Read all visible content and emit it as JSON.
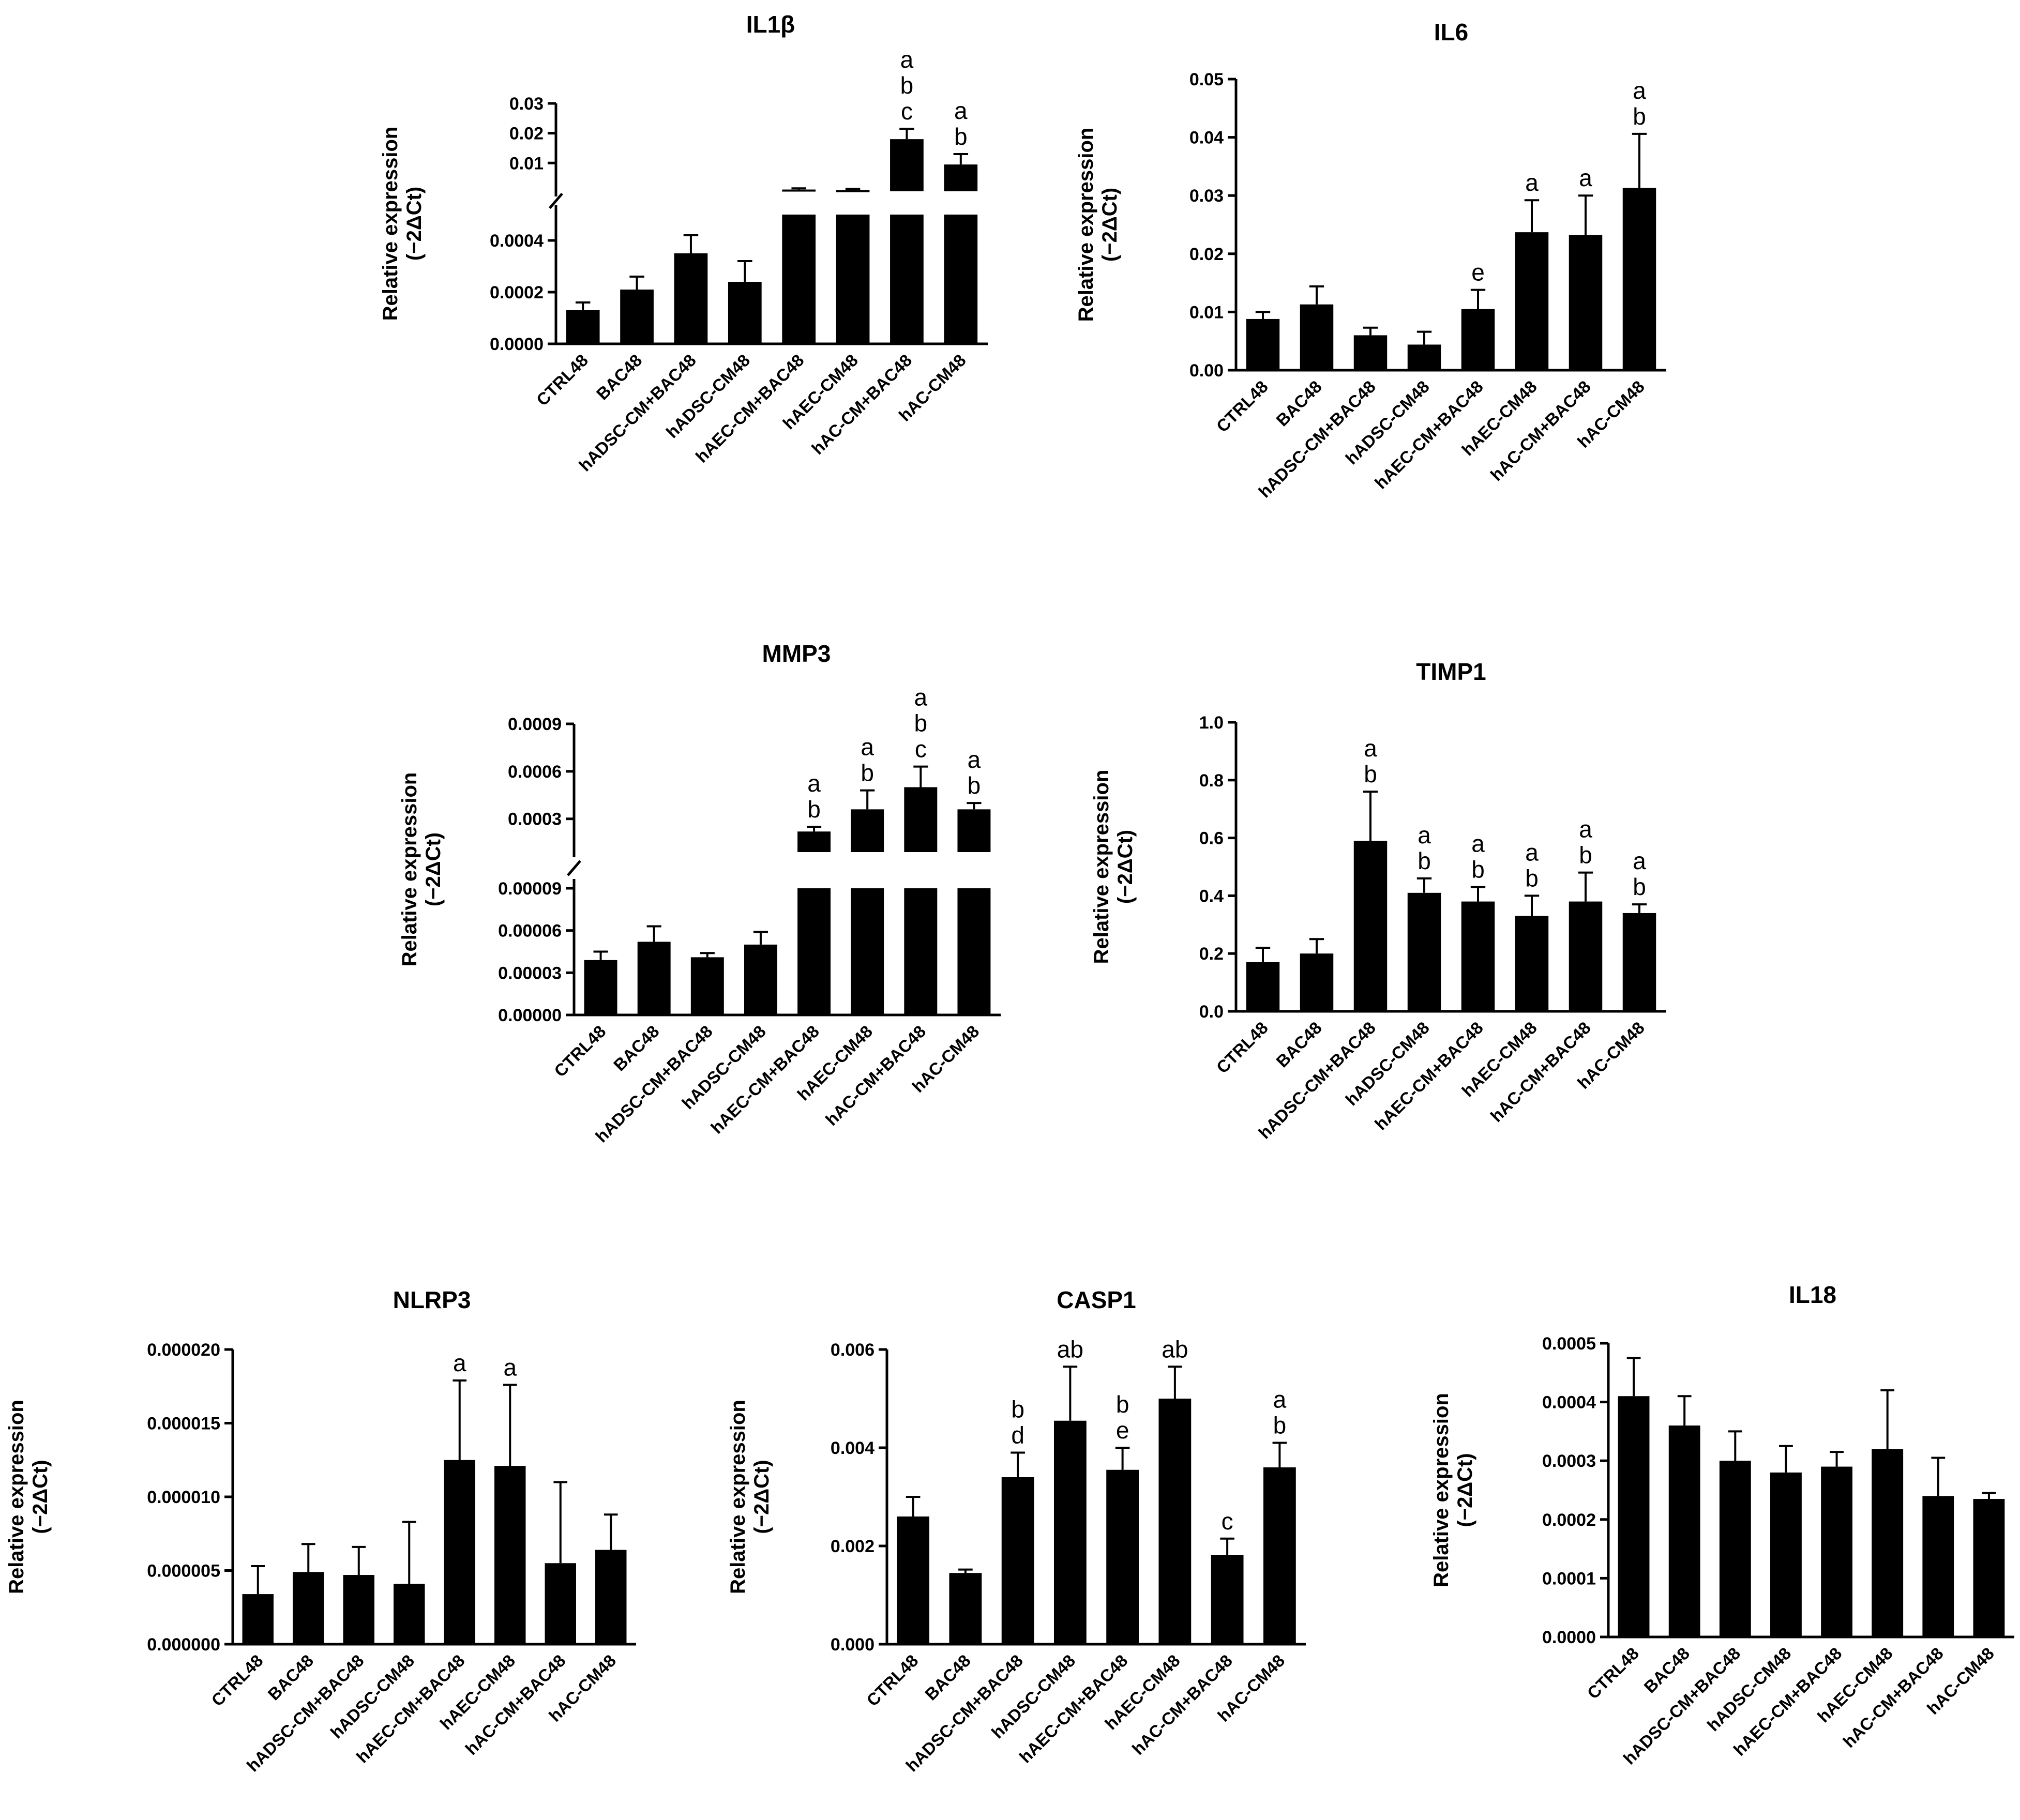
{
  "figure": {
    "y_label_line1": "Relative expression",
    "y_label_line2": "(−2ΔCt)",
    "categories": [
      "CTRL48",
      "BAC48",
      "hADSC-CM+BAC48",
      "hADSC-CM48",
      "hAEC-CM+BAC48",
      "hAEC-CM48",
      "hAC-CM+BAC48",
      "hAC-CM48"
    ]
  },
  "chart_data": [
    {
      "id": "il1b",
      "type": "bar",
      "title": "IL1β",
      "broken_axis": true,
      "lower_range": [
        0,
        0.0005
      ],
      "upper_range": [
        0.0005,
        0.03
      ],
      "lower_ticks": [
        "0.0000",
        "0.0002",
        "0.0004"
      ],
      "lower_tick_values": [
        0,
        0.0002,
        0.0004
      ],
      "upper_ticks": [
        "0.01",
        "0.02",
        "0.03"
      ],
      "upper_tick_values": [
        0.01,
        0.02,
        0.03
      ],
      "values": [
        0.00013,
        0.00021,
        0.00035,
        0.00024,
        0.0011,
        0.0009,
        0.018,
        0.0095
      ],
      "errors": [
        3e-05,
        5e-05,
        7e-05,
        8e-05,
        0.0004,
        0.0004,
        0.0035,
        0.0035
      ],
      "letters": [
        "",
        "",
        "",
        "",
        "",
        "",
        "a b c",
        "a b"
      ]
    },
    {
      "id": "il6",
      "type": "bar",
      "title": "IL6",
      "ylim": [
        0,
        0.05
      ],
      "ticks": [
        "0.00",
        "0.01",
        "0.02",
        "0.03",
        "0.04",
        "0.05"
      ],
      "tick_values": [
        0,
        0.01,
        0.02,
        0.03,
        0.04,
        0.05
      ],
      "values": [
        0.0088,
        0.0113,
        0.006,
        0.0044,
        0.0105,
        0.0237,
        0.0232,
        0.0313
      ],
      "errors": [
        0.0012,
        0.0031,
        0.0013,
        0.0022,
        0.0033,
        0.0055,
        0.0068,
        0.0093
      ],
      "letters": [
        "",
        "",
        "",
        "",
        "e",
        "a",
        "a",
        "a b"
      ]
    },
    {
      "id": "mmp3",
      "type": "bar",
      "title": "MMP3",
      "broken_axis": true,
      "lower_range": [
        0,
        9e-05
      ],
      "upper_range": [
        9e-05,
        0.0009
      ],
      "lower_ticks": [
        "0.00000",
        "0.00003",
        "0.00006",
        "0.00009"
      ],
      "lower_tick_values": [
        0,
        3e-05,
        6e-05,
        9e-05
      ],
      "upper_ticks": [
        "0.0003",
        "0.0006",
        "0.0009"
      ],
      "upper_tick_values": [
        0.0003,
        0.0006,
        0.0009
      ],
      "values": [
        3.9e-05,
        5.2e-05,
        4.1e-05,
        5e-05,
        0.00022,
        0.00036,
        0.0005,
        0.00036
      ],
      "errors": [
        6e-06,
        1.1e-05,
        3e-06,
        9e-06,
        3e-05,
        0.00012,
        0.00013,
        4e-05
      ],
      "letters": [
        "",
        "",
        "",
        "",
        "a b",
        "a b",
        "a b c",
        "a b"
      ]
    },
    {
      "id": "timp1",
      "type": "bar",
      "title": "TIMP1",
      "ylim": [
        0,
        1.0
      ],
      "ticks": [
        "0.0",
        "0.2",
        "0.4",
        "0.6",
        "0.8",
        "1.0"
      ],
      "tick_values": [
        0,
        0.2,
        0.4,
        0.6,
        0.8,
        1.0
      ],
      "values": [
        0.17,
        0.2,
        0.59,
        0.41,
        0.38,
        0.33,
        0.38,
        0.34
      ],
      "errors": [
        0.05,
        0.05,
        0.17,
        0.05,
        0.05,
        0.07,
        0.1,
        0.03
      ],
      "letters": [
        "",
        "",
        "a b",
        "a b",
        "a b",
        "a b",
        "a b",
        "a b"
      ]
    },
    {
      "id": "nlrp3",
      "type": "bar",
      "title": "NLRP3",
      "ylim": [
        0,
        2e-05
      ],
      "ticks": [
        "0.000000",
        "0.000005",
        "0.000010",
        "0.000015",
        "0.000020"
      ],
      "tick_values": [
        0,
        5e-06,
        1e-05,
        1.5e-05,
        2e-05
      ],
      "values": [
        3.4e-06,
        4.9e-06,
        4.7e-06,
        4.1e-06,
        1.25e-05,
        1.21e-05,
        5.5e-06,
        6.4e-06
      ],
      "errors": [
        1.9e-06,
        1.9e-06,
        1.9e-06,
        4.2e-06,
        5.4e-06,
        5.5e-06,
        5.5e-06,
        2.4e-06
      ],
      "letters": [
        "",
        "",
        "",
        "",
        "a",
        "a",
        "",
        ""
      ]
    },
    {
      "id": "casp1",
      "type": "bar",
      "title": "CASP1",
      "ylim": [
        0,
        0.006
      ],
      "ticks": [
        "0.000",
        "0.002",
        "0.004",
        "0.006"
      ],
      "tick_values": [
        0,
        0.002,
        0.004,
        0.006
      ],
      "values": [
        0.0026,
        0.00145,
        0.0034,
        0.00455,
        0.00355,
        0.005,
        0.00182,
        0.0036
      ],
      "errors": [
        0.0004,
        7e-05,
        0.0005,
        0.0011,
        0.00045,
        0.00065,
        0.00033,
        0.0005
      ],
      "letters": [
        "",
        "",
        "b d",
        "ab",
        "b e",
        "ab",
        "c",
        "a b"
      ]
    },
    {
      "id": "il18",
      "type": "bar",
      "title": "IL18",
      "ylim": [
        0,
        0.0005
      ],
      "ticks": [
        "0.0000",
        "0.0001",
        "0.0002",
        "0.0003",
        "0.0004",
        "0.0005"
      ],
      "tick_values": [
        0,
        0.0001,
        0.0002,
        0.0003,
        0.0004,
        0.0005
      ],
      "values": [
        0.00041,
        0.00036,
        0.0003,
        0.00028,
        0.00029,
        0.00032,
        0.00024,
        0.000235
      ],
      "errors": [
        6.5e-05,
        5e-05,
        5e-05,
        4.5e-05,
        2.5e-05,
        0.0001,
        6.5e-05,
        1e-05
      ],
      "letters": [
        "",
        "",
        "",
        "",
        "",
        "",
        "",
        ""
      ]
    }
  ]
}
